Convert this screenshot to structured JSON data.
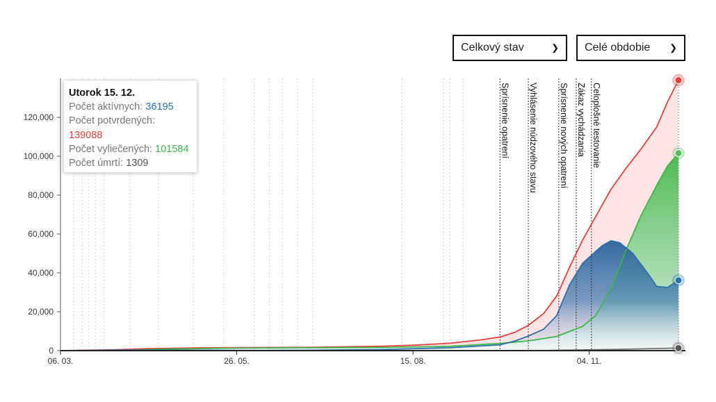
{
  "controls": {
    "mode_select": {
      "value": "Celkový stav"
    },
    "period_select": {
      "value": "Celé obdobie"
    }
  },
  "tooltip": {
    "title": "Utorok 15. 12.",
    "active_label": "Počet aktívnych:",
    "active_value": "36195",
    "confirmed_label": "Počet potvrdených:",
    "confirmed_value": "139088",
    "recovered_label": "Počet vyliečených:",
    "recovered_value": "101584",
    "deaths_label": "Počet úmrtí:",
    "deaths_value": "1309"
  },
  "colors": {
    "confirmed": "#e3403a",
    "active": "#2b6ea8",
    "recovered": "#57bd5a",
    "deaths": "#666666"
  },
  "chart_data": {
    "type": "area",
    "x_range": [
      "2020-03-06",
      "2020-12-15"
    ],
    "ylim": [
      0,
      140000
    ],
    "y_ticks": [
      0,
      20000,
      40000,
      60000,
      80000,
      100000,
      120000
    ],
    "y_tick_labels": [
      "0",
      "20,000",
      "40,000",
      "60,000",
      "80,000",
      "100,000",
      "120,000"
    ],
    "x_ticks": [
      "2020-03-06",
      "2020-05-26",
      "2020-08-15",
      "2020-11-04"
    ],
    "x_tick_labels": [
      "06. 03.",
      "26. 05.",
      "15. 08.",
      "04. 11."
    ],
    "minor_event_lines": [
      "2020-03-12",
      "2020-03-16",
      "2020-03-19",
      "2020-03-22",
      "2020-03-26",
      "2020-04-07",
      "2020-04-20",
      "2020-05-06",
      "2020-05-20",
      "2020-06-03",
      "2020-06-10",
      "2020-06-16",
      "2020-06-23",
      "2020-06-30",
      "2020-08-10",
      "2020-08-29",
      "2020-09-01",
      "2020-09-07"
    ],
    "events": [
      {
        "date": "2020-09-24",
        "label": "Sprísnenie opatrení"
      },
      {
        "date": "2020-10-07",
        "label": "Vyhlásenie núdzového stavu"
      },
      {
        "date": "2020-10-21",
        "label": "Sprísnenie nových opatrení"
      },
      {
        "date": "2020-10-29",
        "label": "Zákaz vychádzania"
      },
      {
        "date": "2020-11-05",
        "label": "Celoplošné testovanie"
      }
    ],
    "series": [
      {
        "key": "confirmed",
        "x": [
          "2020-03-06",
          "2020-04-01",
          "2020-04-15",
          "2020-05-10",
          "2020-06-01",
          "2020-07-01",
          "2020-08-01",
          "2020-08-15",
          "2020-09-01",
          "2020-09-15",
          "2020-09-24",
          "2020-10-01",
          "2020-10-07",
          "2020-10-14",
          "2020-10-20",
          "2020-10-26",
          "2020-11-01",
          "2020-11-07",
          "2020-11-14",
          "2020-11-21",
          "2020-11-28",
          "2020-12-05",
          "2020-12-10",
          "2020-12-15"
        ],
        "values": [
          0,
          450,
          1000,
          1450,
          1530,
          1750,
          2300,
          2800,
          3800,
          5500,
          7000,
          9500,
          13000,
          19000,
          28000,
          43000,
          57000,
          69000,
          83000,
          94000,
          104000,
          115000,
          128000,
          139088
        ]
      },
      {
        "key": "recovered",
        "x": [
          "2020-03-06",
          "2020-04-01",
          "2020-04-20",
          "2020-05-20",
          "2020-06-10",
          "2020-07-01",
          "2020-08-01",
          "2020-09-01",
          "2020-09-24",
          "2020-10-07",
          "2020-10-20",
          "2020-11-01",
          "2020-11-07",
          "2020-11-14",
          "2020-11-21",
          "2020-11-28",
          "2020-12-05",
          "2020-12-10",
          "2020-12-15"
        ],
        "values": [
          0,
          80,
          700,
          1250,
          1400,
          1500,
          1650,
          2200,
          3700,
          5000,
          7300,
          12500,
          18000,
          32000,
          52000,
          70000,
          85000,
          95000,
          101584
        ]
      },
      {
        "key": "active",
        "x": [
          "2020-03-06",
          "2020-04-01",
          "2020-05-10",
          "2020-06-01",
          "2020-07-01",
          "2020-08-01",
          "2020-09-01",
          "2020-09-24",
          "2020-10-01",
          "2020-10-07",
          "2020-10-14",
          "2020-10-20",
          "2020-10-26",
          "2020-11-01",
          "2020-11-07",
          "2020-11-10",
          "2020-11-14",
          "2020-11-18",
          "2020-11-24",
          "2020-11-28",
          "2020-12-02",
          "2020-12-05",
          "2020-12-10",
          "2020-12-15"
        ],
        "values": [
          0,
          300,
          220,
          90,
          220,
          580,
          1450,
          3000,
          5000,
          7500,
          11000,
          18000,
          34000,
          45000,
          51000,
          54000,
          56500,
          55500,
          50000,
          44000,
          38000,
          33000,
          32500,
          36195
        ]
      },
      {
        "key": "deaths",
        "x": [
          "2020-03-06",
          "2020-09-01",
          "2020-10-15",
          "2020-11-15",
          "2020-12-15"
        ],
        "values": [
          0,
          30,
          100,
          600,
          1309
        ]
      }
    ]
  }
}
